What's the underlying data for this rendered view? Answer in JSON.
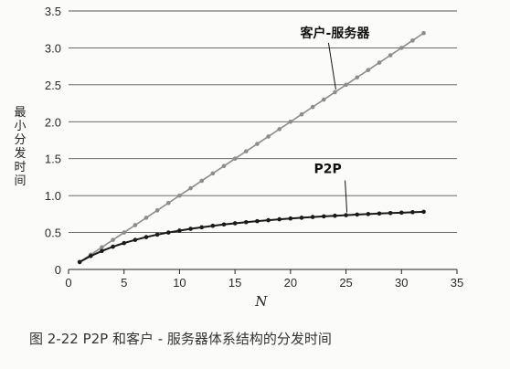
{
  "caption": "图 2-22   P2P 和客户 - 服务器体系结构的分发时间",
  "chart_data": {
    "type": "line",
    "title": "",
    "xlabel": "N",
    "ylabel": "最小分发时间",
    "xlim": [
      0,
      35
    ],
    "ylim": [
      0,
      3.5
    ],
    "xticks": [
      0,
      5,
      10,
      15,
      20,
      25,
      30,
      35
    ],
    "yticks": [
      0,
      0.5,
      1.0,
      1.5,
      2.0,
      2.5,
      3.0,
      3.5
    ],
    "xtick_labels": [
      "0",
      "5",
      "10",
      "15",
      "20",
      "25",
      "30",
      "35"
    ],
    "ytick_labels": [
      "0",
      "0.5",
      "1.0",
      "1.5",
      "2.0",
      "2.5",
      "3.0",
      "3.5"
    ],
    "grid": "horizontal",
    "x": [
      1,
      2,
      3,
      4,
      5,
      6,
      7,
      8,
      9,
      10,
      11,
      12,
      13,
      14,
      15,
      16,
      17,
      18,
      19,
      20,
      21,
      22,
      23,
      24,
      25,
      26,
      27,
      28,
      29,
      30,
      31,
      32
    ],
    "series": [
      {
        "name": "客户-服务器",
        "color": "#8c8c8c",
        "values": [
          0.1,
          0.2,
          0.3,
          0.4,
          0.5,
          0.6,
          0.7,
          0.8,
          0.9,
          1.0,
          1.1,
          1.2,
          1.3,
          1.4,
          1.5,
          1.6,
          1.7,
          1.8,
          1.9,
          2.0,
          2.1,
          2.2,
          2.3,
          2.4,
          2.5,
          2.6,
          2.7,
          2.8,
          2.9,
          3.0,
          3.1,
          3.2
        ]
      },
      {
        "name": "P2P",
        "color": "#1a1a1a",
        "values": [
          0.1,
          0.182,
          0.25,
          0.308,
          0.357,
          0.4,
          0.438,
          0.471,
          0.5,
          0.526,
          0.55,
          0.571,
          0.591,
          0.609,
          0.625,
          0.64,
          0.654,
          0.667,
          0.679,
          0.69,
          0.7,
          0.71,
          0.719,
          0.727,
          0.735,
          0.743,
          0.75,
          0.757,
          0.763,
          0.769,
          0.775,
          0.78
        ]
      }
    ],
    "annotations": [
      {
        "series": 0,
        "text": "客户-服务器"
      },
      {
        "series": 1,
        "text": "P2P"
      }
    ]
  }
}
